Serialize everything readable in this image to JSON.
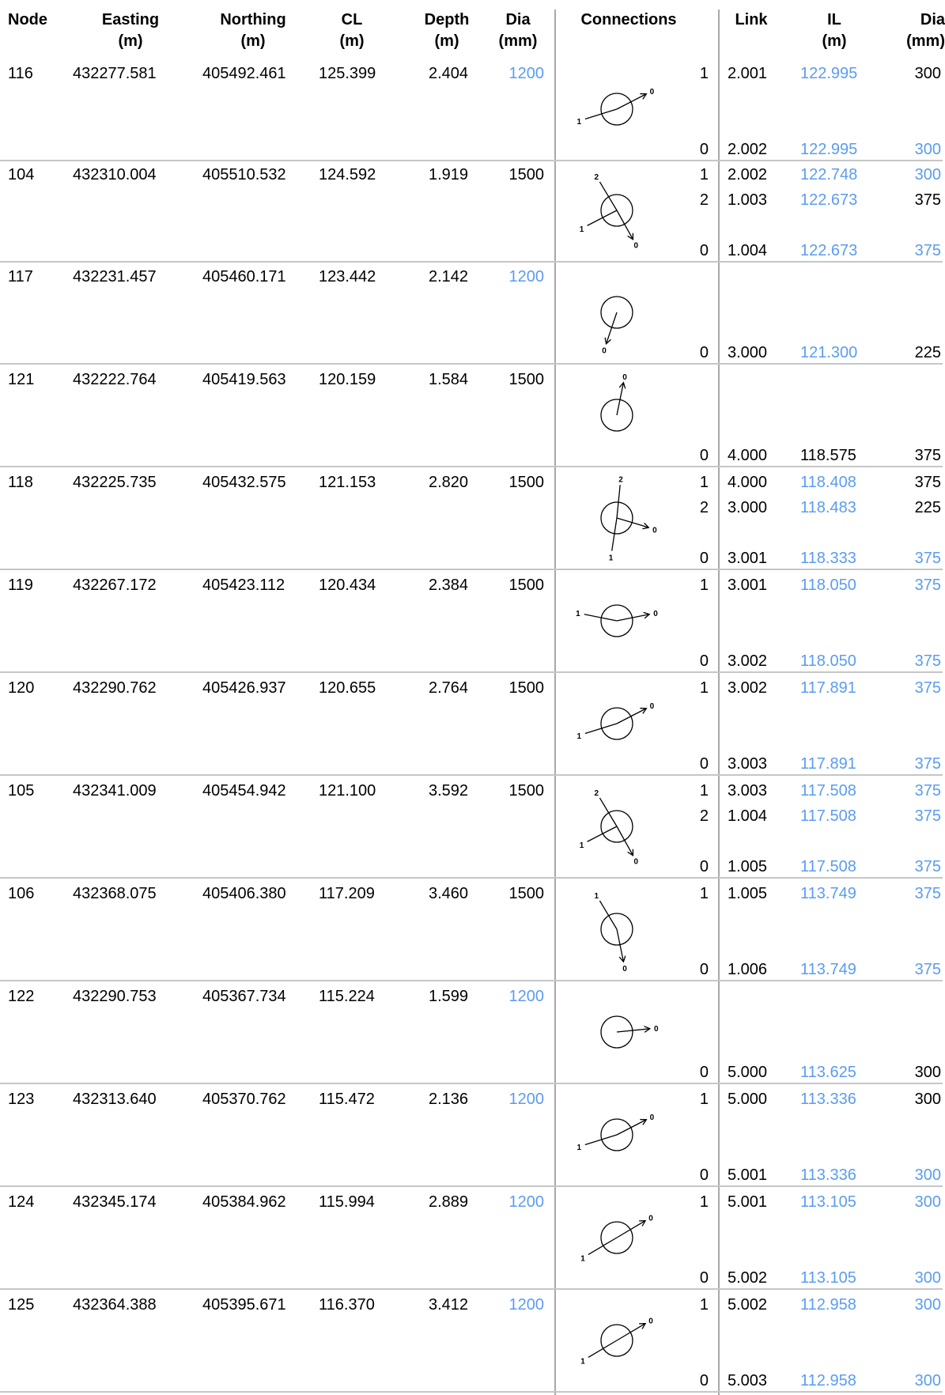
{
  "headers": {
    "node": "Node",
    "easting": [
      "Easting",
      "(m)"
    ],
    "northing": [
      "Northing",
      "(m)"
    ],
    "cl": [
      "CL",
      "(m)"
    ],
    "depth": [
      "Depth",
      "(m)"
    ],
    "dia": [
      "Dia",
      "(mm)"
    ],
    "connections": "Connections",
    "link": "Link",
    "il": [
      "IL",
      "(m)"
    ],
    "dia2": [
      "Dia",
      "(mm)"
    ]
  },
  "colors": {
    "blue": "#5b9cf0",
    "grid": "#c6c6c6"
  },
  "rows": [
    {
      "node": "116",
      "easting": "432277.581",
      "northing": "405492.461",
      "cl": "125.399",
      "depth": "2.404",
      "dia": "1200",
      "dia_blue": true,
      "connections": [
        {
          "label": "1",
          "link": "2.001",
          "il": "122.995",
          "dia": "300",
          "il_blue": true,
          "dia_blue": false
        },
        {
          "label": "0",
          "link": "2.002",
          "il": "122.995",
          "dia": "300",
          "il_blue": true,
          "dia_blue": true
        }
      ],
      "diagram": {
        "arrows": [
          {
            "label": "1",
            "dir": [
              -0.955,
              0.297
            ],
            "out": false
          },
          {
            "label": "0",
            "dir": [
              0.889,
              -0.458
            ],
            "out": true
          }
        ]
      }
    },
    {
      "node": "104",
      "easting": "432310.004",
      "northing": "405510.532",
      "cl": "124.592",
      "depth": "1.919",
      "dia": "1500",
      "dia_blue": false,
      "connections": [
        {
          "label": "1",
          "link": "2.002",
          "il": "122.748",
          "dia": "300",
          "il_blue": true,
          "dia_blue": true
        },
        {
          "label": "2",
          "link": "1.003",
          "il": "122.673",
          "dia": "375",
          "il_blue": true,
          "dia_blue": false
        },
        {
          "label": "0",
          "link": "1.004",
          "il": "122.673",
          "dia": "375",
          "il_blue": true,
          "dia_blue": true
        }
      ],
      "diagram": {
        "arrows": [
          {
            "label": "2",
            "dir": [
              -0.514,
              -0.858
            ],
            "out": false
          },
          {
            "label": "1",
            "dir": [
              -0.889,
              0.458
            ],
            "out": false
          },
          {
            "label": "0",
            "dir": [
              0.486,
              0.874
            ],
            "out": true
          }
        ]
      }
    },
    {
      "node": "117",
      "easting": "432231.457",
      "northing": "405460.171",
      "cl": "123.442",
      "depth": "2.142",
      "dia": "1200",
      "dia_blue": true,
      "connections": [
        {
          "label": "0",
          "link": "3.000",
          "il": "121.300",
          "dia": "225",
          "il_blue": true,
          "dia_blue": false
        }
      ],
      "diagram": {
        "arrows": [
          {
            "label": "0",
            "dir": [
              -0.32,
              0.947
            ],
            "out": true
          }
        ]
      }
    },
    {
      "node": "121",
      "easting": "432222.764",
      "northing": "405419.563",
      "cl": "120.159",
      "depth": "1.584",
      "dia": "1500",
      "dia_blue": false,
      "connections": [
        {
          "label": "0",
          "link": "4.000",
          "il": "118.575",
          "dia": "375",
          "il_blue": false,
          "dia_blue": false
        }
      ],
      "diagram": {
        "arrows": [
          {
            "label": "0",
            "dir": [
              0.2,
              -0.98
            ],
            "out": true
          }
        ]
      }
    },
    {
      "node": "118",
      "easting": "432225.735",
      "northing": "405432.575",
      "cl": "121.153",
      "depth": "2.820",
      "dia": "1500",
      "dia_blue": false,
      "connections": [
        {
          "label": "1",
          "link": "4.000",
          "il": "118.408",
          "dia": "375",
          "il_blue": true,
          "dia_blue": false
        },
        {
          "label": "2",
          "link": "3.000",
          "il": "118.483",
          "dia": "225",
          "il_blue": true,
          "dia_blue": false
        },
        {
          "label": "0",
          "link": "3.001",
          "il": "118.333",
          "dia": "375",
          "il_blue": true,
          "dia_blue": true
        }
      ],
      "diagram": {
        "arrows": [
          {
            "label": "2",
            "dir": [
              0.1,
              -0.995
            ],
            "out": false
          },
          {
            "label": "1",
            "dir": [
              -0.15,
              0.989
            ],
            "out": false
          },
          {
            "label": "0",
            "dir": [
              0.958,
              0.287
            ],
            "out": true
          }
        ]
      }
    },
    {
      "node": "119",
      "easting": "432267.172",
      "northing": "405423.112",
      "cl": "120.434",
      "depth": "2.384",
      "dia": "1500",
      "dia_blue": false,
      "connections": [
        {
          "label": "1",
          "link": "3.001",
          "il": "118.050",
          "dia": "375",
          "il_blue": true,
          "dia_blue": true
        },
        {
          "label": "0",
          "link": "3.002",
          "il": "118.050",
          "dia": "375",
          "il_blue": true,
          "dia_blue": true
        }
      ],
      "diagram": {
        "arrows": [
          {
            "label": "1",
            "dir": [
              -0.981,
              -0.196
            ],
            "out": false
          },
          {
            "label": "0",
            "dir": [
              0.981,
              -0.196
            ],
            "out": true
          }
        ]
      }
    },
    {
      "node": "120",
      "easting": "432290.762",
      "northing": "405426.937",
      "cl": "120.655",
      "depth": "2.764",
      "dia": "1500",
      "dia_blue": false,
      "connections": [
        {
          "label": "1",
          "link": "3.002",
          "il": "117.891",
          "dia": "375",
          "il_blue": true,
          "dia_blue": true
        },
        {
          "label": "0",
          "link": "3.003",
          "il": "117.891",
          "dia": "375",
          "il_blue": true,
          "dia_blue": true
        }
      ],
      "diagram": {
        "arrows": [
          {
            "label": "1",
            "dir": [
              -0.955,
              0.297
            ],
            "out": false
          },
          {
            "label": "0",
            "dir": [
              0.889,
              -0.458
            ],
            "out": true
          }
        ]
      }
    },
    {
      "node": "105",
      "easting": "432341.009",
      "northing": "405454.942",
      "cl": "121.100",
      "depth": "3.592",
      "dia": "1500",
      "dia_blue": false,
      "connections": [
        {
          "label": "1",
          "link": "3.003",
          "il": "117.508",
          "dia": "375",
          "il_blue": true,
          "dia_blue": true
        },
        {
          "label": "2",
          "link": "1.004",
          "il": "117.508",
          "dia": "375",
          "il_blue": true,
          "dia_blue": true
        },
        {
          "label": "0",
          "link": "1.005",
          "il": "117.508",
          "dia": "375",
          "il_blue": true,
          "dia_blue": true
        }
      ],
      "diagram": {
        "arrows": [
          {
            "label": "2",
            "dir": [
              -0.514,
              -0.858
            ],
            "out": false
          },
          {
            "label": "1",
            "dir": [
              -0.889,
              0.458
            ],
            "out": false
          },
          {
            "label": "0",
            "dir": [
              0.486,
              0.874
            ],
            "out": true
          }
        ]
      }
    },
    {
      "node": "106",
      "easting": "432368.075",
      "northing": "405406.380",
      "cl": "117.209",
      "depth": "3.460",
      "dia": "1500",
      "dia_blue": false,
      "connections": [
        {
          "label": "1",
          "link": "1.005",
          "il": "113.749",
          "dia": "375",
          "il_blue": true,
          "dia_blue": true
        },
        {
          "label": "0",
          "link": "1.006",
          "il": "113.749",
          "dia": "375",
          "il_blue": true,
          "dia_blue": true
        }
      ],
      "diagram": {
        "arrows": [
          {
            "label": "1",
            "dir": [
              -0.514,
              -0.858
            ],
            "out": false
          },
          {
            "label": "0",
            "dir": [
              0.2,
              0.98
            ],
            "out": true
          }
        ]
      }
    },
    {
      "node": "122",
      "easting": "432290.753",
      "northing": "405367.734",
      "cl": "115.224",
      "depth": "1.599",
      "dia": "1200",
      "dia_blue": true,
      "connections": [
        {
          "label": "0",
          "link": "5.000",
          "il": "113.625",
          "dia": "300",
          "il_blue": true,
          "dia_blue": false
        }
      ],
      "diagram": {
        "arrows": [
          {
            "label": "0",
            "dir": [
              0.995,
              -0.1
            ],
            "out": true
          }
        ]
      }
    },
    {
      "node": "123",
      "easting": "432313.640",
      "northing": "405370.762",
      "cl": "115.472",
      "depth": "2.136",
      "dia": "1200",
      "dia_blue": true,
      "connections": [
        {
          "label": "1",
          "link": "5.000",
          "il": "113.336",
          "dia": "300",
          "il_blue": true,
          "dia_blue": false
        },
        {
          "label": "0",
          "link": "5.001",
          "il": "113.336",
          "dia": "300",
          "il_blue": true,
          "dia_blue": true
        }
      ],
      "diagram": {
        "arrows": [
          {
            "label": "1",
            "dir": [
              -0.955,
              0.297
            ],
            "out": false
          },
          {
            "label": "0",
            "dir": [
              0.889,
              -0.458
            ],
            "out": true
          }
        ]
      }
    },
    {
      "node": "124",
      "easting": "432345.174",
      "northing": "405384.962",
      "cl": "115.994",
      "depth": "2.889",
      "dia": "1200",
      "dia_blue": true,
      "connections": [
        {
          "label": "1",
          "link": "5.001",
          "il": "113.105",
          "dia": "300",
          "il_blue": true,
          "dia_blue": true
        },
        {
          "label": "0",
          "link": "5.002",
          "il": "113.105",
          "dia": "300",
          "il_blue": true,
          "dia_blue": true
        }
      ],
      "diagram": {
        "arrows": [
          {
            "label": "1",
            "dir": [
              -0.86,
              0.51
            ],
            "out": false
          },
          {
            "label": "0",
            "dir": [
              0.86,
              -0.51
            ],
            "out": true
          }
        ]
      }
    },
    {
      "node": "125",
      "easting": "432364.388",
      "northing": "405395.671",
      "cl": "116.370",
      "depth": "3.412",
      "dia": "1200",
      "dia_blue": true,
      "connections": [
        {
          "label": "1",
          "link": "5.002",
          "il": "112.958",
          "dia": "300",
          "il_blue": true,
          "dia_blue": true
        },
        {
          "label": "0",
          "link": "5.003",
          "il": "112.958",
          "dia": "300",
          "il_blue": true,
          "dia_blue": true
        }
      ],
      "diagram": {
        "arrows": [
          {
            "label": "1",
            "dir": [
              -0.86,
              0.51
            ],
            "out": false
          },
          {
            "label": "0",
            "dir": [
              0.86,
              -0.51
            ],
            "out": true
          }
        ]
      }
    }
  ]
}
